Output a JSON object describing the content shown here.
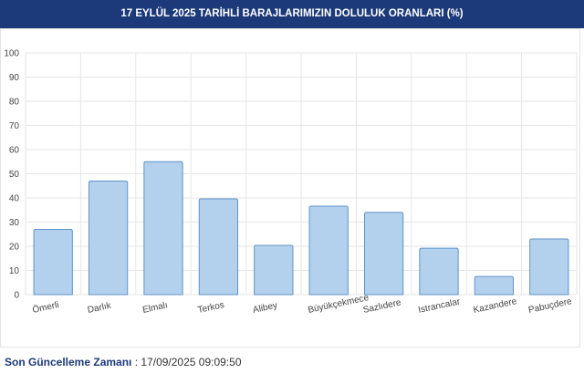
{
  "chart_data": {
    "type": "bar",
    "title": "17 EYLÜL 2025 TARİHLİ BARAJLARIMIZIN DOLULUK ORANLARI (%)",
    "categories": [
      "Ömerli",
      "Darlık",
      "Elmalı",
      "Terkos",
      "Alibey",
      "Büyükçekmece",
      "Sazlıdere",
      "Istrancalar",
      "Kazandere",
      "Pabuçdere"
    ],
    "values": [
      27,
      47,
      55,
      39.6,
      20.4,
      36.6,
      34,
      19.2,
      7.5,
      23
    ],
    "color": "#b3d0ec",
    "border_color": "#5f93c9",
    "ylim": [
      0,
      100
    ],
    "yticks": [
      0,
      10,
      20,
      30,
      40,
      50,
      60,
      70,
      80,
      90,
      100
    ],
    "grid": true
  },
  "footer": {
    "label": "Son Güncelleme Zamanı",
    "value": ": 17/09/2025 09:09:50"
  }
}
